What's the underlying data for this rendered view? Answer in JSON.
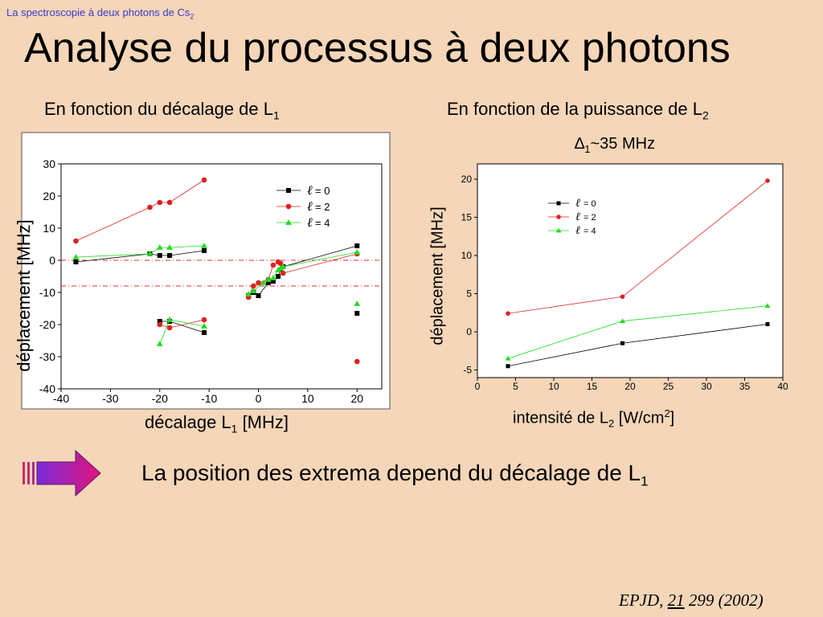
{
  "header": {
    "text": "La spectroscopie à deux photons de Cs",
    "sub": "2"
  },
  "title": "Analyse du processus à deux photons",
  "left_panel": {
    "subtitle": "En fonction du décalage de L",
    "subtitle_sub": "1"
  },
  "right_panel": {
    "subtitle": "En fonction de la puissance de L",
    "subtitle_sub": "2",
    "condition_prefix": "∆",
    "condition_sub": "1",
    "condition_rest": "~35 MHz"
  },
  "conclusion": {
    "text": "La position des extrema depend du décalage de L",
    "sub": "1"
  },
  "citation": {
    "journal": "EPJD, ",
    "volume": "21",
    "rest": " 299 (2002)"
  },
  "colors": {
    "background": "#f5d6b8",
    "header": "#3a3acc",
    "l0": "#000000",
    "l2": "#e02020",
    "l4": "#22dd22"
  },
  "chart_data": [
    {
      "type": "scatter",
      "ylabel": "déplacement [MHz]",
      "xlabel": "décalage L",
      "xlabel_sub": "1",
      "xlabel_unit": " [MHz]",
      "xlim": [
        -40,
        25
      ],
      "ylim": [
        -40,
        30
      ],
      "xticks": [
        -40,
        -30,
        -20,
        -10,
        0,
        10,
        20
      ],
      "yticks": [
        30,
        20,
        10,
        0,
        -10,
        -20,
        -30,
        -40
      ],
      "reference_lines_y": [
        0,
        -8
      ],
      "legend": {
        "position": "top-right",
        "entries": [
          "= 0",
          "= 2",
          "= 4"
        ],
        "glyph": "ℓ"
      },
      "series": [
        {
          "name": "= 0",
          "marker": "square",
          "color": "#000000",
          "segments": [
            [
              [
                -37,
                -0.5
              ],
              [
                -22,
                2
              ],
              [
                -20,
                1.5
              ],
              [
                -18,
                1.5
              ],
              [
                -11,
                3
              ]
            ],
            [
              [
                -20,
                -19
              ],
              [
                -18,
                -19
              ],
              [
                -11,
                -22.5
              ]
            ],
            [
              [
                -2,
                -11
              ],
              [
                -1,
                -10
              ],
              [
                0,
                -11
              ],
              [
                2,
                -7
              ],
              [
                3,
                -6.5
              ],
              [
                4,
                -5
              ],
              [
                4.5,
                -3
              ],
              [
                5,
                -2
              ],
              [
                20,
                4.5
              ]
            ]
          ],
          "points": [
            [
              20,
              -16.5
            ]
          ]
        },
        {
          "name": "= 2",
          "marker": "circle",
          "color": "#e02020",
          "segments": [
            [
              [
                -37,
                6
              ],
              [
                -22,
                16.5
              ],
              [
                -20,
                18
              ],
              [
                -18,
                18
              ],
              [
                -11,
                25
              ]
            ],
            [
              [
                -20,
                -20
              ],
              [
                -18,
                -21
              ],
              [
                -11,
                -18.5
              ]
            ],
            [
              [
                -2,
                -11.5
              ],
              [
                -1,
                -8
              ],
              [
                0,
                -7
              ],
              [
                2,
                -6
              ],
              [
                3,
                -1.5
              ],
              [
                4,
                -0.5
              ],
              [
                4.5,
                -1
              ],
              [
                5,
                -4
              ],
              [
                20,
                2
              ]
            ]
          ],
          "points": [
            [
              20,
              -31.5
            ]
          ]
        },
        {
          "name": "= 4",
          "marker": "triangle",
          "color": "#22dd22",
          "segments": [
            [
              [
                -37,
                1
              ],
              [
                -22,
                2
              ],
              [
                -20,
                4
              ],
              [
                -18,
                4
              ],
              [
                -11,
                4.5
              ]
            ],
            [
              [
                -20,
                -26
              ],
              [
                -18,
                -18.5
              ],
              [
                -11,
                -20.5
              ]
            ],
            [
              [
                -2,
                -10.5
              ],
              [
                -1,
                -9.5
              ],
              [
                1,
                -7
              ],
              [
                2,
                -6
              ],
              [
                3,
                -5.5
              ],
              [
                4,
                -3
              ],
              [
                4.5,
                -2.5
              ],
              [
                5,
                -2
              ],
              [
                20,
                2.5
              ]
            ]
          ],
          "points": [
            [
              20,
              -13.5
            ]
          ]
        }
      ]
    },
    {
      "type": "line",
      "ylabel": "déplacement [MHz]",
      "xlabel": "intensité de L",
      "xlabel_sub": "2",
      "xlabel_unit": " [W/cm",
      "xlabel_sup": "2",
      "xlabel_end": "]",
      "xlim": [
        0,
        40
      ],
      "ylim": [
        -6,
        22
      ],
      "xticks": [
        0,
        5,
        10,
        15,
        20,
        25,
        30,
        35,
        40
      ],
      "yticks": [
        20,
        15,
        10,
        5,
        0,
        -5
      ],
      "legend": {
        "position": "top-left",
        "entries": [
          "= 0",
          "= 2",
          "= 4"
        ],
        "glyph": "ℓ"
      },
      "series": [
        {
          "name": "= 0",
          "marker": "square",
          "color": "#000000",
          "x": [
            4,
            19,
            38
          ],
          "y": [
            -4.5,
            -1.5,
            1
          ]
        },
        {
          "name": "= 2",
          "marker": "circle",
          "color": "#e02020",
          "x": [
            4,
            19,
            38
          ],
          "y": [
            2.4,
            4.6,
            19.8
          ]
        },
        {
          "name": "= 4",
          "marker": "triangle",
          "color": "#22dd22",
          "x": [
            4,
            19,
            38
          ],
          "y": [
            -3.5,
            1.4,
            3.4
          ]
        }
      ]
    }
  ]
}
